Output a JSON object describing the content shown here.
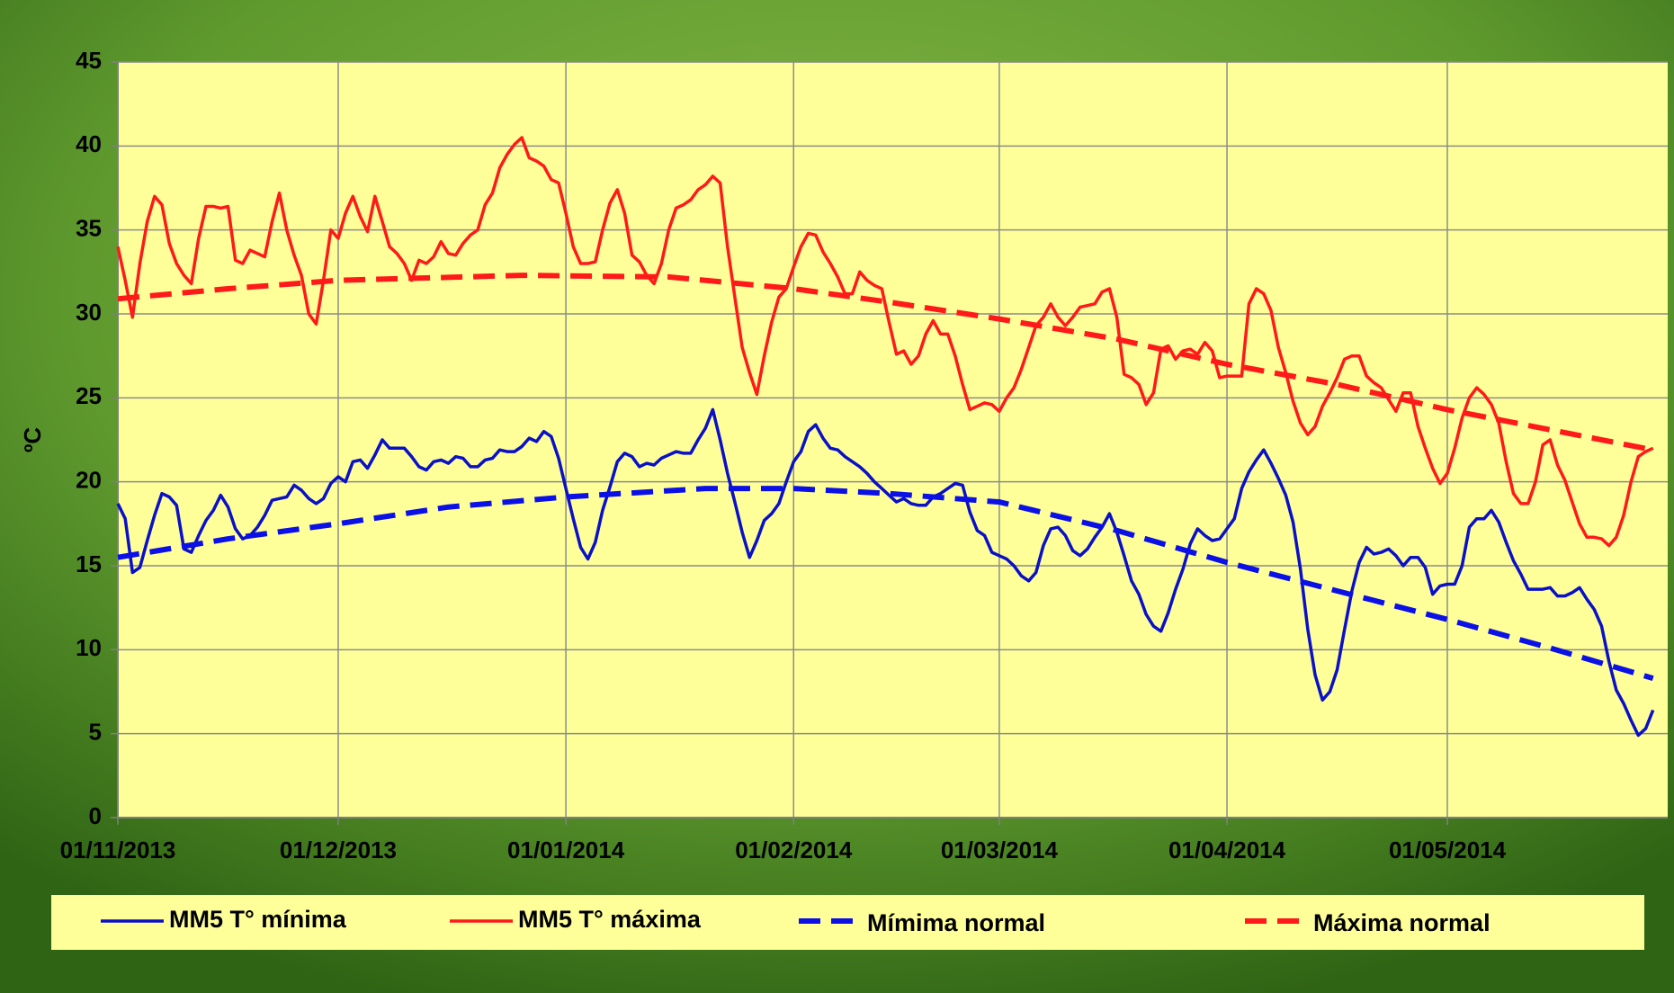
{
  "chart_data": {
    "type": "line",
    "y_label": "ºC",
    "xlim": [
      "2013-11-01",
      "2014-05-31"
    ],
    "xticks": [
      {
        "value": "2013-11-01",
        "label": "01/11/2013"
      },
      {
        "value": "2013-12-01",
        "label": "01/12/2013"
      },
      {
        "value": "2014-01-01",
        "label": "01/01/2014"
      },
      {
        "value": "2014-02-01",
        "label": "01/02/2014"
      },
      {
        "value": "2014-03-01",
        "label": "01/03/2014"
      },
      {
        "value": "2014-04-01",
        "label": "01/04/2014"
      },
      {
        "value": "2014-05-01",
        "label": "01/05/2014"
      }
    ],
    "ylim": [
      0,
      45
    ],
    "yticks": [
      0,
      5,
      10,
      15,
      20,
      25,
      30,
      35,
      40,
      45
    ],
    "grid": true,
    "legend": "bottom",
    "x": [
      "2013-11-01",
      "2013-11-02",
      "2013-11-03",
      "2013-11-04",
      "2013-11-05",
      "2013-11-06",
      "2013-11-07",
      "2013-11-08",
      "2013-11-09",
      "2013-11-10",
      "2013-11-11",
      "2013-11-12",
      "2013-11-13",
      "2013-11-14",
      "2013-11-15",
      "2013-11-16",
      "2013-11-17",
      "2013-11-18",
      "2013-11-19",
      "2013-11-20",
      "2013-11-21",
      "2013-11-22",
      "2013-11-23",
      "2013-11-24",
      "2013-11-25",
      "2013-11-26",
      "2013-11-27",
      "2013-11-28",
      "2013-11-29",
      "2013-11-30",
      "2013-12-01",
      "2013-12-02",
      "2013-12-03",
      "2013-12-04",
      "2013-12-05",
      "2013-12-06",
      "2013-12-07",
      "2013-12-08",
      "2013-12-09",
      "2013-12-10",
      "2013-12-11",
      "2013-12-12",
      "2013-12-13",
      "2013-12-14",
      "2013-12-15",
      "2013-12-16",
      "2013-12-17",
      "2013-12-18",
      "2013-12-19",
      "2013-12-20",
      "2013-12-21",
      "2013-12-22",
      "2013-12-23",
      "2013-12-24",
      "2013-12-25",
      "2013-12-26",
      "2013-12-27",
      "2013-12-28",
      "2013-12-29",
      "2013-12-30",
      "2013-12-31",
      "2014-01-01",
      "2014-01-02",
      "2014-01-03",
      "2014-01-04",
      "2014-01-05",
      "2014-01-06",
      "2014-01-07",
      "2014-01-08",
      "2014-01-09",
      "2014-01-10",
      "2014-01-11",
      "2014-01-12",
      "2014-01-13",
      "2014-01-14",
      "2014-01-15",
      "2014-01-16",
      "2014-01-17",
      "2014-01-18",
      "2014-01-19",
      "2014-01-20",
      "2014-01-21",
      "2014-01-22",
      "2014-01-23",
      "2014-01-24",
      "2014-01-25",
      "2014-01-26",
      "2014-01-27",
      "2014-01-28",
      "2014-01-29",
      "2014-01-30",
      "2014-01-31",
      "2014-02-01",
      "2014-02-02",
      "2014-02-03",
      "2014-02-04",
      "2014-02-05",
      "2014-02-06",
      "2014-02-07",
      "2014-02-08",
      "2014-02-09",
      "2014-02-10",
      "2014-02-11",
      "2014-02-12",
      "2014-02-13",
      "2014-02-14",
      "2014-02-15",
      "2014-02-16",
      "2014-02-17",
      "2014-02-18",
      "2014-02-19",
      "2014-02-20",
      "2014-02-21",
      "2014-02-22",
      "2014-02-23",
      "2014-02-24",
      "2014-02-25",
      "2014-02-26",
      "2014-02-27",
      "2014-02-28",
      "2014-03-01",
      "2014-03-02",
      "2014-03-03",
      "2014-03-04",
      "2014-03-05",
      "2014-03-06",
      "2014-03-07",
      "2014-03-08",
      "2014-03-09",
      "2014-03-10",
      "2014-03-11",
      "2014-03-12",
      "2014-03-13",
      "2014-03-14",
      "2014-03-15",
      "2014-03-16",
      "2014-03-17",
      "2014-03-18",
      "2014-03-19",
      "2014-03-20",
      "2014-03-21",
      "2014-03-22",
      "2014-03-23",
      "2014-03-24",
      "2014-03-25",
      "2014-03-26",
      "2014-03-27",
      "2014-03-28",
      "2014-03-29",
      "2014-03-30",
      "2014-03-31",
      "2014-04-01",
      "2014-04-02",
      "2014-04-03",
      "2014-04-04",
      "2014-04-05",
      "2014-04-06",
      "2014-04-07",
      "2014-04-08",
      "2014-04-09",
      "2014-04-10",
      "2014-04-11",
      "2014-04-12",
      "2014-04-13",
      "2014-04-14",
      "2014-04-15",
      "2014-04-16",
      "2014-04-17",
      "2014-04-18",
      "2014-04-19",
      "2014-04-20",
      "2014-04-21",
      "2014-04-22",
      "2014-04-23",
      "2014-04-24",
      "2014-04-25",
      "2014-04-26",
      "2014-04-27",
      "2014-04-28",
      "2014-04-29",
      "2014-04-30",
      "2014-05-01",
      "2014-05-02",
      "2014-05-03",
      "2014-05-04",
      "2014-05-05",
      "2014-05-06",
      "2014-05-07",
      "2014-05-08",
      "2014-05-09",
      "2014-05-10",
      "2014-05-11",
      "2014-05-12",
      "2014-05-13",
      "2014-05-14",
      "2014-05-15",
      "2014-05-16",
      "2014-05-17",
      "2014-05-18",
      "2014-05-19",
      "2014-05-20",
      "2014-05-21",
      "2014-05-22",
      "2014-05-23",
      "2014-05-24",
      "2014-05-25",
      "2014-05-26",
      "2014-05-27",
      "2014-05-28",
      "2014-05-29"
    ],
    "series": [
      {
        "name": "MM5 T° mínima",
        "color": "#0a10c8",
        "style": "solid",
        "values": [
          18.7,
          17.8,
          14.6,
          14.9,
          16.5,
          18,
          19.3,
          19.1,
          18.6,
          16,
          15.8,
          16.8,
          17.7,
          18.3,
          19.2,
          18.5,
          17.2,
          16.6,
          16.8,
          17.3,
          18,
          18.9,
          19,
          19.1,
          19.8,
          19.5,
          19,
          18.7,
          19,
          19.9,
          20.3,
          20,
          21.2,
          21.3,
          20.8,
          21.6,
          22.5,
          22,
          22,
          22,
          21.5,
          20.9,
          20.7,
          21.2,
          21.3,
          21.1,
          21.5,
          21.4,
          20.9,
          20.9,
          21.3,
          21.4,
          21.9,
          21.8,
          21.8,
          22.1,
          22.6,
          22.4,
          23,
          22.7,
          21.4,
          19.6,
          17.8,
          16.1,
          15.4,
          16.4,
          18.3,
          19.7,
          21.2,
          21.7,
          21.5,
          20.9,
          21.1,
          21,
          21.4,
          21.6,
          21.8,
          21.7,
          21.7,
          22.5,
          23.2,
          24.3,
          22.5,
          20.5,
          18.8,
          17,
          15.5,
          16.5,
          17.7,
          18.1,
          18.7,
          20,
          21.2,
          21.8,
          23,
          23.4,
          22.6,
          22,
          21.9,
          21.5,
          21.2,
          20.9,
          20.5,
          20,
          19.6,
          19.2,
          18.8,
          19,
          18.7,
          18.6,
          18.6,
          19.1,
          19.3,
          19.6,
          19.9,
          19.8,
          18.2,
          17.1,
          16.8,
          15.8,
          15.6,
          15.4,
          15,
          14.4,
          14.1,
          14.6,
          16.2,
          17.2,
          17.3,
          16.8,
          15.9,
          15.6,
          16,
          16.7,
          17.3,
          18.1,
          17,
          15.6,
          14.1,
          13.3,
          12.1,
          11.4,
          11.1,
          12.2,
          13.6,
          14.8,
          16.3,
          17.2,
          16.8,
          16.5,
          16.6,
          17.2,
          17.8,
          19.6,
          20.6,
          21.3,
          21.9,
          21.1,
          20.2,
          19.2,
          17.6,
          14.8,
          11.2,
          8.5,
          7,
          7.5,
          8.8,
          11.2,
          13.5,
          15.2,
          16.1,
          15.7,
          15.8,
          16,
          15.6,
          15,
          15.5,
          15.5,
          14.9,
          13.3,
          13.8,
          13.9,
          13.9,
          15,
          17.3,
          17.8,
          17.8,
          18.3,
          17.6,
          16.4,
          15.3,
          14.5,
          13.6,
          13.6,
          13.6,
          13.7,
          13.2,
          13.2,
          13.4,
          13.7,
          13,
          12.4,
          11.4,
          9.3,
          7.6,
          6.8,
          5.8,
          4.9,
          5.3,
          6.4
        ]
      },
      {
        "name": "MM5 T° máxima",
        "color": "#ff1a1a",
        "style": "solid",
        "values": [
          34,
          32,
          29.8,
          33,
          35.5,
          37,
          36.5,
          34.2,
          33,
          32.3,
          31.8,
          34.5,
          36.4,
          36.4,
          36.3,
          36.4,
          33.2,
          33,
          33.8,
          33.6,
          33.4,
          35.5,
          37.2,
          35,
          33.5,
          32.3,
          30,
          29.4,
          32,
          35,
          34.5,
          36,
          37,
          35.8,
          34.9,
          37,
          35.5,
          34,
          33.6,
          33,
          32,
          33.2,
          33,
          33.4,
          34.3,
          33.6,
          33.5,
          34.2,
          34.7,
          35,
          36.5,
          37.2,
          38.7,
          39.5,
          40.1,
          40.5,
          39.3,
          39.1,
          38.8,
          38,
          37.8,
          36,
          34,
          33,
          33,
          33.1,
          35,
          36.6,
          37.4,
          36,
          33.5,
          33.1,
          32.3,
          31.8,
          33,
          35,
          36.3,
          36.5,
          36.8,
          37.4,
          37.7,
          38.2,
          37.8,
          34,
          31,
          28,
          26.5,
          25.2,
          27.5,
          29.5,
          31,
          31.5,
          32.8,
          34,
          34.8,
          34.7,
          33.7,
          33,
          32.2,
          31.2,
          31.2,
          32.5,
          32,
          31.7,
          31.5,
          29.5,
          27.6,
          27.8,
          27,
          27.5,
          28.8,
          29.6,
          28.8,
          28.8,
          27.5,
          25.8,
          24.3,
          24.5,
          24.7,
          24.6,
          24.2,
          25,
          25.6,
          26.7,
          28,
          29.3,
          29.8,
          30.6,
          29.8,
          29.3,
          29.8,
          30.4,
          30.5,
          30.6,
          31.3,
          31.5,
          29.8,
          26.4,
          26.2,
          25.8,
          24.6,
          25.3,
          27.9,
          28.1,
          27.3,
          27.8,
          27.9,
          27.6,
          28.3,
          27.8,
          26.2,
          26.3,
          26.3,
          26.3,
          30.6,
          31.5,
          31.2,
          30.2,
          28,
          26.5,
          24.8,
          23.5,
          22.8,
          23.3,
          24.5,
          25.3,
          26.2,
          27.3,
          27.5,
          27.5,
          26.3,
          25.9,
          25.6,
          24.9,
          24.2,
          25.3,
          25.3,
          23.3,
          22,
          20.8,
          19.9,
          20.5,
          22,
          23.8,
          25,
          25.6,
          25.2,
          24.6,
          23.5,
          21.2,
          19.3,
          18.7,
          18.7,
          20,
          22.2,
          22.5,
          21,
          20.1,
          18.8,
          17.5,
          16.7,
          16.7,
          16.6,
          16.2,
          16.7,
          18,
          20,
          21.5,
          21.8,
          22
        ]
      },
      {
        "name": "Mímima normal",
        "color": "#0a10e6",
        "style": "dashed",
        "x": [
          "2013-11-01",
          "2013-11-16",
          "2013-12-01",
          "2013-12-16",
          "2014-01-01",
          "2014-01-20",
          "2014-02-01",
          "2014-02-14",
          "2014-03-01",
          "2014-03-17",
          "2014-04-01",
          "2014-04-16",
          "2014-05-01",
          "2014-05-15",
          "2014-05-29"
        ],
        "values": [
          15.5,
          16.6,
          17.5,
          18.5,
          19.1,
          19.6,
          19.6,
          19.3,
          18.8,
          17.1,
          15.2,
          13.5,
          11.8,
          10.1,
          8.3
        ]
      },
      {
        "name": "Máxima normal",
        "color": "#ff1a1a",
        "style": "dashed",
        "x": [
          "2013-11-01",
          "2013-11-16",
          "2013-12-01",
          "2013-12-26",
          "2014-01-15",
          "2014-02-01",
          "2014-02-14",
          "2014-03-01",
          "2014-03-17",
          "2014-04-01",
          "2014-04-16",
          "2014-05-01",
          "2014-05-15",
          "2014-05-29"
        ],
        "values": [
          30.9,
          31.5,
          32,
          32.3,
          32.2,
          31.5,
          30.7,
          29.7,
          28.5,
          27,
          25.8,
          24.3,
          23.1,
          21.9
        ]
      }
    ]
  }
}
